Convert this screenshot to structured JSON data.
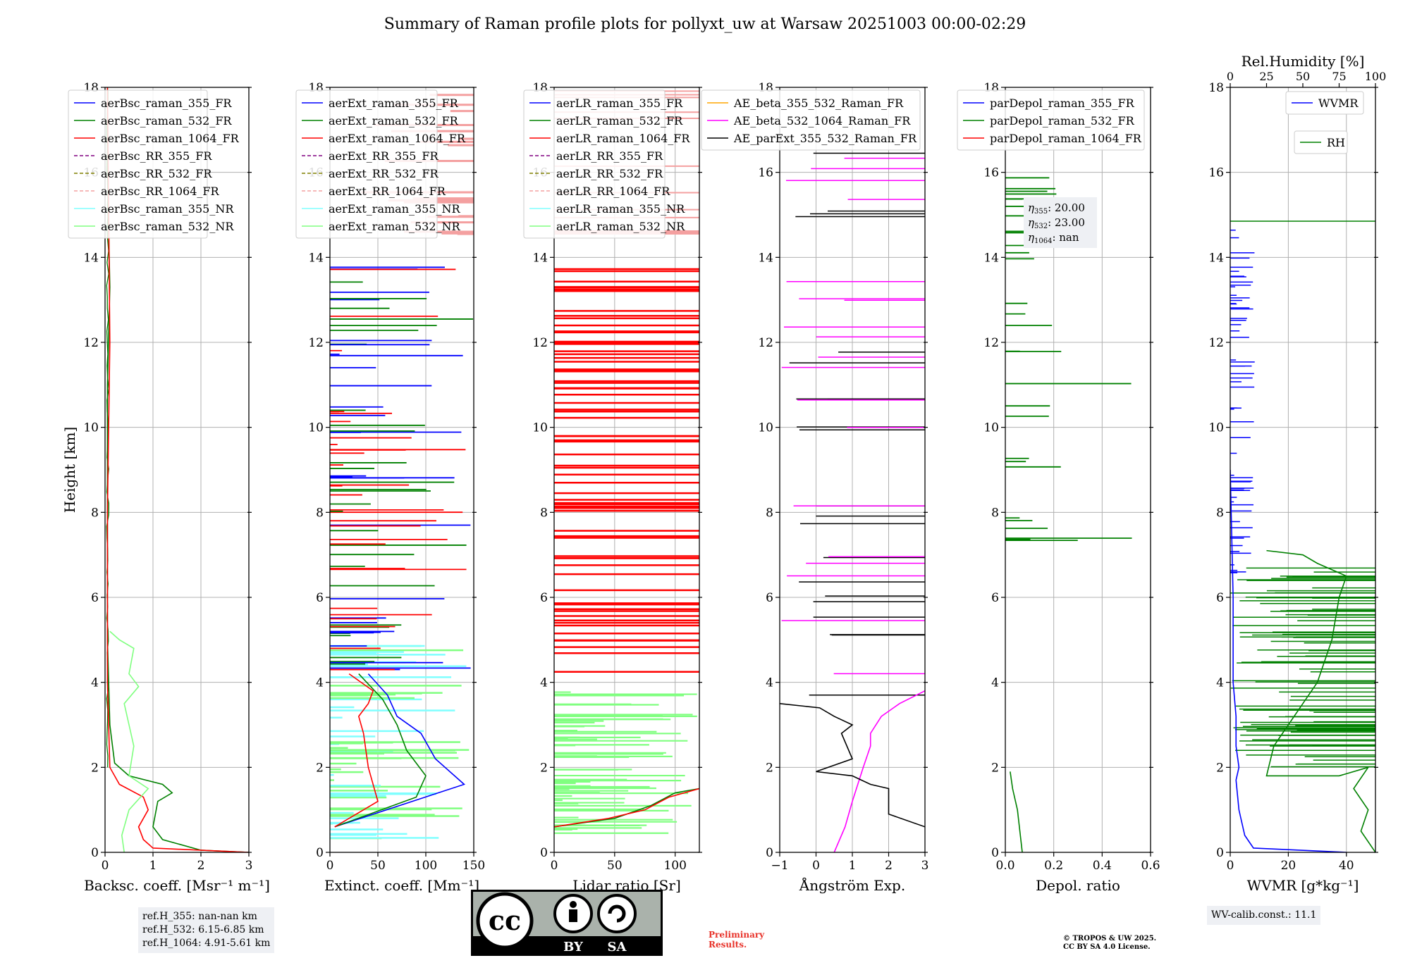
{
  "title": "Summary of Raman profile plots for pollyxt_uw at Warsaw 20251003 00:00-02:29",
  "colors": {
    "blue": "#0000ff",
    "green": "#008000",
    "red": "#ff0000",
    "purple": "#800080",
    "olive": "#808000",
    "salmon": "#f4a0a0",
    "cyan": "#80ffff",
    "lightgreen": "#80ff80",
    "orange": "#ffa500",
    "magenta": "#ff00ff",
    "black": "#000000"
  },
  "chart_data": [
    {
      "type": "line",
      "ylabel": "Height [km]",
      "xlabel": "Backsc. coeff. [Msr⁻¹ m⁻¹]",
      "xlim": [
        0,
        3
      ],
      "ylim": [
        0,
        18
      ],
      "xticks": [
        "0",
        "1",
        "2",
        "3"
      ],
      "yticks": [
        "0",
        "2",
        "4",
        "6",
        "8",
        "10",
        "12",
        "14",
        "16",
        "18"
      ],
      "legend": [
        "aerBsc_raman_355_FR",
        "aerBsc_raman_532_FR",
        "aerBsc_raman_1064_FR",
        "aerBsc_RR_355_FR",
        "aerBsc_RR_532_FR",
        "aerBsc_RR_1064_FR",
        "aerBsc_raman_355_NR",
        "aerBsc_raman_532_NR"
      ],
      "series": [
        {
          "name": "aerBsc_raman_532_FR",
          "x": [
            3.0,
            2.0,
            1.2,
            1.0,
            1.1,
            1.4,
            1.2,
            0.5,
            0.2,
            0.1,
            0.05,
            0.05,
            0.05,
            0.1,
            0.05,
            0.05
          ],
          "y": [
            0,
            0.05,
            0.3,
            0.6,
            1.2,
            1.4,
            1.6,
            1.8,
            2.1,
            3,
            5,
            8,
            11,
            13.3,
            16,
            18
          ]
        },
        {
          "name": "aerBsc_raman_1064_FR",
          "x": [
            3.0,
            1.0,
            0.8,
            0.7,
            0.9,
            0.8,
            0.3,
            0.1,
            0.05,
            0.05,
            0.1,
            0.05
          ],
          "y": [
            0,
            0.1,
            0.3,
            0.6,
            1.0,
            1.3,
            1.6,
            2.0,
            4,
            8,
            12,
            18
          ]
        },
        {
          "name": "aerBsc_raman_532_NR",
          "x": [
            0.4,
            0.35,
            0.5,
            0.9,
            0.5,
            0.6,
            0.5,
            0.4,
            0.7,
            0.5,
            0.6,
            0.3,
            0.1
          ],
          "y": [
            0,
            0.4,
            1.0,
            1.5,
            1.8,
            2.5,
            3.0,
            3.5,
            3.9,
            4.2,
            4.8,
            5.0,
            5.2
          ]
        }
      ]
    },
    {
      "type": "line",
      "xlabel": "Extinct. coeff. [Mm⁻¹]",
      "xlim": [
        0,
        150
      ],
      "ylim": [
        0,
        18
      ],
      "xticks": [
        "0",
        "50",
        "100",
        "150"
      ],
      "legend": [
        "aerExt_raman_355_FR",
        "aerExt_raman_532_FR",
        "aerExt_raman_1064_FR",
        "aerExt_RR_355_FR",
        "aerExt_RR_532_FR",
        "aerExt_RR_1064_FR",
        "aerExt_raman_355_NR",
        "aerExt_raman_532_NR"
      ],
      "series": [
        {
          "name": "aerExt_raman_355_FR",
          "x": [
            5,
            140,
            110,
            95,
            70,
            60,
            40
          ],
          "y": [
            0.6,
            1.6,
            2.2,
            2.8,
            3.2,
            3.7,
            4.2
          ]
        },
        {
          "name": "aerExt_raman_532_FR",
          "x": [
            5,
            90,
            100,
            80,
            70,
            55,
            30
          ],
          "y": [
            0.6,
            1.3,
            1.8,
            2.4,
            3.0,
            3.6,
            4.2
          ]
        },
        {
          "name": "aerExt_raman_1064_FR",
          "x": [
            5,
            50,
            40,
            35,
            30,
            40,
            45,
            20
          ],
          "y": [
            0.6,
            1.2,
            2.0,
            2.8,
            3.2,
            3.5,
            3.8,
            4.2
          ]
        }
      ]
    },
    {
      "type": "line",
      "xlabel": "Lidar ratio [Sr]",
      "xlim": [
        0,
        120
      ],
      "ylim": [
        0,
        18
      ],
      "xticks": [
        "0",
        "50",
        "100"
      ],
      "legend": [
        "aerLR_raman_355_FR",
        "aerLR_raman_532_FR",
        "aerLR_raman_1064_FR",
        "aerLR_RR_355_FR",
        "aerLR_RR_532_FR",
        "aerLR_RR_1064_FR",
        "aerLR_raman_355_NR",
        "aerLR_raman_532_NR"
      ],
      "series": [
        {
          "name": "aerLR_raman_532_FR",
          "x": [
            0,
            50,
            80,
            100,
            120
          ],
          "y": [
            0.6,
            0.8,
            1.1,
            1.4,
            1.5
          ]
        },
        {
          "name": "aerLR_raman_1064_FR",
          "x": [
            0,
            45,
            75,
            95,
            120
          ],
          "y": [
            0.6,
            0.8,
            1.0,
            1.3,
            1.5
          ]
        }
      ]
    },
    {
      "type": "line",
      "xlabel": "Ångström Exp.",
      "xlim": [
        -1,
        3
      ],
      "ylim": [
        0,
        18
      ],
      "xticks": [
        "−1",
        "0",
        "1",
        "2",
        "3"
      ],
      "legend": [
        "AE_beta_355_532_Raman_FR",
        "AE_beta_532_1064_Raman_FR",
        "AE_parExt_355_532_Raman_FR"
      ],
      "series": [
        {
          "name": "AE_beta_532_1064_Raman_FR",
          "x": [
            0.5,
            0.8,
            1.0,
            1.3,
            1.5,
            1.5,
            1.8,
            2.3,
            3.0
          ],
          "y": [
            0,
            0.6,
            1.2,
            2.0,
            2.5,
            2.8,
            3.2,
            3.5,
            3.8
          ]
        },
        {
          "name": "AE_parExt_355_532_Raman_FR",
          "x": [
            3.0,
            2.0,
            2.0,
            1.5,
            1.0,
            0.0,
            1.0,
            0.7,
            1.0,
            0.5,
            0.1,
            -1.0
          ],
          "y": [
            0.6,
            0.9,
            1.5,
            1.6,
            1.8,
            1.9,
            2.2,
            2.8,
            3.0,
            3.2,
            3.4,
            3.5
          ]
        }
      ]
    },
    {
      "type": "line",
      "xlabel": "Depol. ratio",
      "xlim": [
        0,
        0.6
      ],
      "ylim": [
        0,
        18
      ],
      "xticks": [
        "0.0",
        "0.2",
        "0.4",
        "0.6"
      ],
      "legend": [
        "parDepol_raman_355_FR",
        "parDepol_raman_532_FR",
        "parDepol_raman_1064_FR"
      ],
      "annotation": [
        {
          "sym": "η",
          "sub": "355",
          "val": ": 20.00"
        },
        {
          "sym": "η",
          "sub": "532",
          "val": ": 23.00"
        },
        {
          "sym": "η",
          "sub": "1064",
          "val": ": nan"
        }
      ],
      "series": [
        {
          "name": "parDepol_raman_532_FR",
          "x": [
            0.07,
            0.06,
            0.05,
            0.03,
            0.02
          ],
          "y": [
            0,
            0.5,
            1.0,
            1.5,
            1.9
          ]
        }
      ]
    },
    {
      "type": "line",
      "xlabel": "WVMR [g*kg⁻¹]",
      "xlim": [
        0,
        50
      ],
      "ylim": [
        0,
        18
      ],
      "xticks": [
        "0",
        "20",
        "40"
      ],
      "top_axis": {
        "label": "Rel.Humidity [%]",
        "ticks": [
          "0",
          "25",
          "50",
          "75",
          "100"
        ]
      },
      "legend": [
        "WVMR",
        "RH"
      ],
      "series": [
        {
          "name": "WVMR",
          "x": [
            40,
            8,
            5,
            3,
            2,
            3,
            2,
            2,
            1,
            1,
            1,
            0
          ],
          "y": [
            0,
            0.1,
            0.4,
            1.0,
            1.7,
            2.0,
            2.5,
            3.2,
            4.0,
            5.0,
            6.0,
            9.0
          ]
        },
        {
          "name": "RH",
          "x": [
            100,
            90,
            95,
            85,
            95,
            75,
            25,
            30,
            40,
            60,
            70,
            75,
            80,
            60,
            50,
            25
          ],
          "y": [
            0,
            0.5,
            1.0,
            1.5,
            2.0,
            1.8,
            1.8,
            2.5,
            3.0,
            4.0,
            5.0,
            6.0,
            6.5,
            6.8,
            7.0,
            7.1
          ]
        }
      ]
    }
  ],
  "info_left": [
    "ref.H_355: nan-nan km",
    "ref.H_532: 6.15-6.85 km",
    "ref.H_1064: 4.91-5.61 km"
  ],
  "info_right": "WV-calib.const.: 11.1",
  "prelim": [
    "Preliminary",
    "Results."
  ],
  "copyright": [
    "© TROPOS & UW 2025.",
    "CC BY SA 4.0 License."
  ],
  "cc": {
    "by": "BY",
    "sa": "SA"
  }
}
